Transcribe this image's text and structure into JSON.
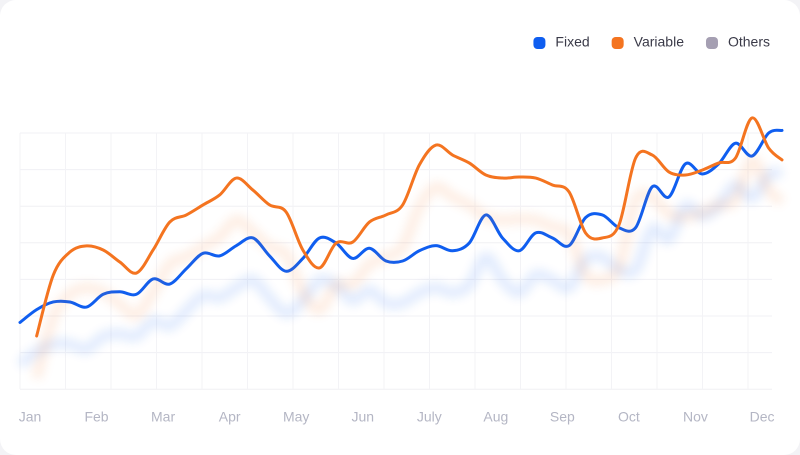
{
  "chart_data": {
    "type": "line",
    "categories": [
      "Jan",
      "Feb",
      "Mar",
      "Apr",
      "May",
      "Jun",
      "July",
      "Aug",
      "Sep",
      "Oct",
      "Nov",
      "Dec"
    ],
    "x": [
      -0.15,
      0.1,
      0.35,
      0.6,
      0.85,
      1.1,
      1.35,
      1.6,
      1.85,
      2.1,
      2.35,
      2.6,
      2.85,
      3.1,
      3.35,
      3.6,
      3.85,
      4.1,
      4.35,
      4.6,
      4.85,
      5.1,
      5.35,
      5.6,
      5.85,
      6.1,
      6.35,
      6.6,
      6.85,
      7.1,
      7.35,
      7.6,
      7.85,
      8.1,
      8.35,
      8.6,
      8.85,
      9.1,
      9.35,
      9.6,
      9.85,
      10.1,
      10.35,
      10.6,
      10.85,
      11.1,
      11.3
    ],
    "xlim": [
      -0.15,
      11.3
    ],
    "ylim": [
      0,
      110
    ],
    "grid": true,
    "legend": "top-right",
    "series": [
      {
        "name": "Fixed",
        "color": "#0f5ef0",
        "values": [
          26,
          31,
          34,
          34,
          32,
          37,
          38,
          37,
          43,
          41,
          47,
          53,
          52,
          56,
          59,
          52,
          46,
          51,
          59,
          57,
          51,
          55,
          50,
          50,
          54,
          56,
          54,
          57,
          68,
          59,
          54,
          61,
          59,
          56,
          67,
          68,
          63,
          63,
          79,
          75,
          88,
          84,
          88,
          96,
          91,
          100,
          101
        ]
      },
      {
        "name": "Variable",
        "color": "#f47420",
        "values": [
          null,
          20.7,
          44.5,
          53.5,
          55.9,
          54.3,
          49.6,
          45.3,
          54.3,
          65.2,
          68,
          71.9,
          75.8,
          82.4,
          77.7,
          71.9,
          69.1,
          54.3,
          47.3,
          57,
          57.4,
          65.2,
          68,
          71.9,
          87.5,
          95.3,
          91.4,
          88.3,
          83.6,
          82.4,
          82.8,
          82.4,
          79.7,
          77,
          60.9,
          59,
          64.1,
          90.2,
          91.4,
          84.8,
          83.6,
          85.5,
          88.3,
          90.2,
          105.9,
          94.1,
          89.5
        ]
      },
      {
        "name": "Others",
        "color": "#a59fb2",
        "values": [
          null,
          null,
          null,
          null,
          null,
          null,
          null,
          null,
          null,
          null,
          null,
          null,
          null,
          null,
          null,
          null,
          null,
          null,
          null,
          null,
          null,
          null,
          null,
          null,
          null,
          null,
          null,
          null,
          null,
          null,
          null,
          null,
          null,
          null,
          null,
          null,
          null,
          null,
          null,
          null,
          null,
          null,
          null,
          null,
          null,
          null,
          null
        ]
      }
    ]
  }
}
